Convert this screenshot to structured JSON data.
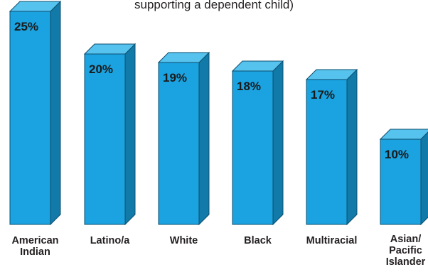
{
  "chart_data": {
    "type": "bar",
    "title_fragment": "supporting a dependent child)",
    "categories": [
      "American\nIndian",
      "Latino/a",
      "White",
      "Black",
      "Multiracial",
      "Asian/\nPacific\nIslander"
    ],
    "values": [
      25,
      20,
      19,
      18,
      17,
      10
    ],
    "value_labels": [
      "25%",
      "20%",
      "19%",
      "18%",
      "17%",
      "10%"
    ],
    "ylim": [
      0,
      25
    ],
    "grid": false,
    "legend": "none"
  },
  "colors": {
    "bar_front": "#1aa3e0",
    "bar_side": "#117aa8",
    "bar_top": "#56c2ee",
    "outline": "#0f4f6e"
  }
}
